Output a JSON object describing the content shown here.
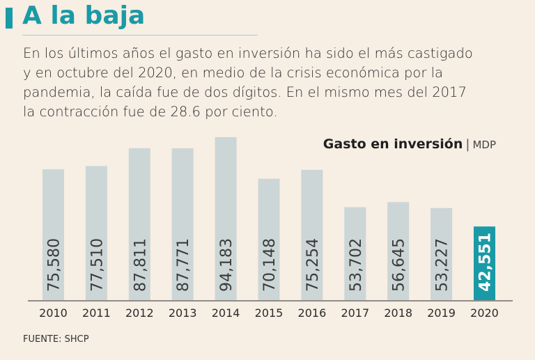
{
  "headline": "A la baja",
  "description": "En los últimos años el gasto en inversión ha sido el más castigado\ny en octubre del 2020, en medio de la crisis económica por la\npandemia, la caída fue de dos dígitos. En el mismo mes del 2017\nla contracción fue de 28.6 por ciento.",
  "source": "FUENTE: SHCP",
  "colors": {
    "accent": "#1a9aa6",
    "bar": "#ccd6d6",
    "background": "#f7eee4"
  },
  "chart_data": {
    "type": "bar",
    "title": "Gasto en inversión",
    "unit": "MDP",
    "categories": [
      "2010",
      "2011",
      "2012",
      "2013",
      "2014",
      "2015",
      "2016",
      "2017",
      "2018",
      "2019",
      "2020"
    ],
    "values": [
      75580,
      77510,
      87811,
      87771,
      94183,
      70148,
      75254,
      53702,
      56645,
      53227,
      42551
    ],
    "labels": [
      "75,580",
      "77,510",
      "87,811",
      "87,771",
      "94,183",
      "70,148",
      "75,254",
      "53,702",
      "56,645",
      "53,227",
      "42,551"
    ],
    "highlight": "2020",
    "ylim": [
      0,
      100000
    ],
    "xlabel": "",
    "ylabel": ""
  }
}
